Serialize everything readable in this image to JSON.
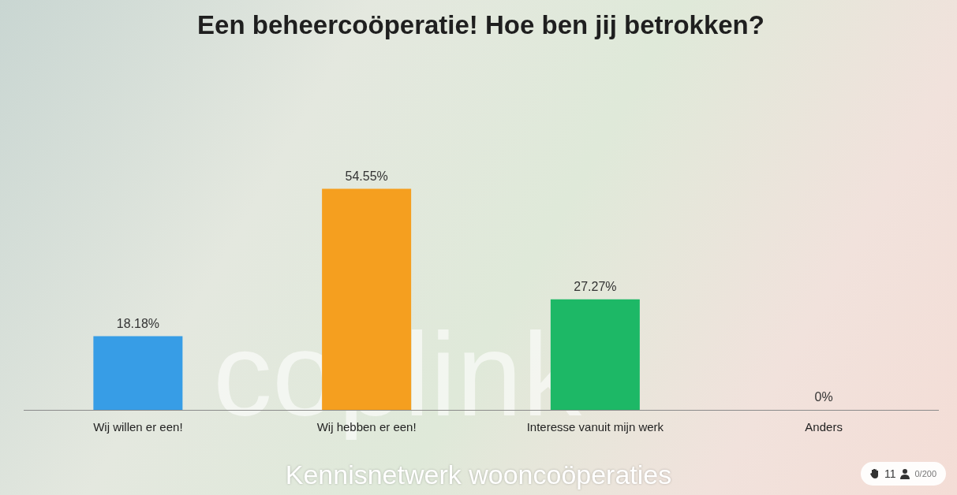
{
  "chart_data": {
    "type": "bar",
    "title": "Een beheercoöperatie! Hoe ben jij betrokken?",
    "categories": [
      "Wij willen er een!",
      "Wij hebben er een!",
      "Interesse vanuit mijn werk",
      "Anders"
    ],
    "values": [
      18.18,
      54.55,
      27.27,
      0
    ],
    "value_labels": [
      "18.18%",
      "54.55%",
      "27.27%",
      "0%"
    ],
    "colors": [
      "#379de6",
      "#f59f1f",
      "#1db866",
      "#9b59b6"
    ],
    "ylim": [
      0,
      60
    ],
    "grid": false,
    "data_labels": true,
    "tick_labels": "x",
    "annotations": [
      "coplink",
      "Kennisnetwerk wooncoöperaties",
      "11",
      "0/200"
    ]
  }
}
